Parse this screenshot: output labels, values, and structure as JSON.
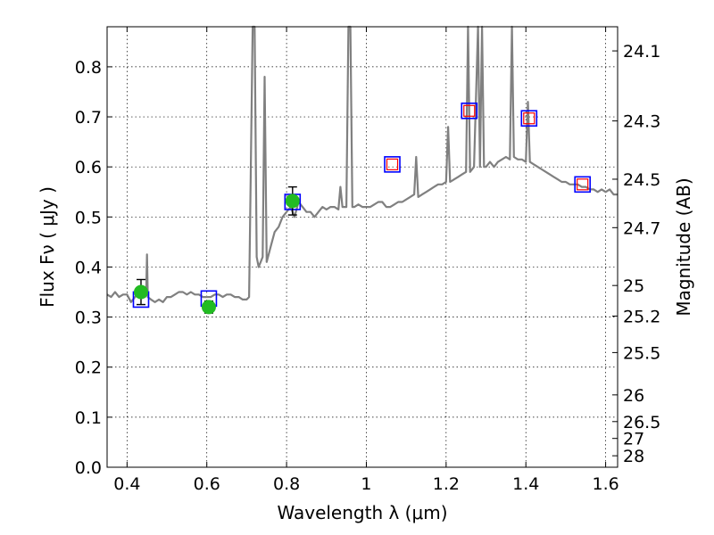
{
  "chart_data": {
    "type": "scatter",
    "xlabel": "Wavelength  λ (μm)",
    "ylabel": "Flux  Fν  ( μJy )",
    "y2label": "Magnitude (AB)",
    "xlim": [
      0.35,
      1.63
    ],
    "ylim": [
      0.0,
      0.88
    ],
    "grid": true,
    "colors": {
      "spectrum": "#808080",
      "observed_fill": "#22bb22",
      "model_square": "#0000ff",
      "model_inner": "#ff0000",
      "error_bar": "#000000"
    },
    "x_ticks": [
      {
        "value": 0.4,
        "label": "0.4"
      },
      {
        "value": 0.6,
        "label": "0.6"
      },
      {
        "value": 0.8,
        "label": "0.8"
      },
      {
        "value": 1.0,
        "label": "1"
      },
      {
        "value": 1.2,
        "label": "1.2"
      },
      {
        "value": 1.4,
        "label": "1.4"
      },
      {
        "value": 1.6,
        "label": "1.6"
      }
    ],
    "y_ticks": [
      {
        "value": 0.0,
        "label": "0.0"
      },
      {
        "value": 0.1,
        "label": "0.1"
      },
      {
        "value": 0.2,
        "label": "0.2"
      },
      {
        "value": 0.3,
        "label": "0.3"
      },
      {
        "value": 0.4,
        "label": "0.4"
      },
      {
        "value": 0.5,
        "label": "0.5"
      },
      {
        "value": 0.6,
        "label": "0.6"
      },
      {
        "value": 0.7,
        "label": "0.7"
      },
      {
        "value": 0.8,
        "label": "0.8"
      }
    ],
    "mag_ticks": [
      {
        "value": 24.1,
        "label": "24.1"
      },
      {
        "value": 24.3,
        "label": "24.3"
      },
      {
        "value": 24.5,
        "label": "24.5"
      },
      {
        "value": 24.7,
        "label": "24.7"
      },
      {
        "value": 25.0,
        "label": "25"
      },
      {
        "value": 25.2,
        "label": "25.2"
      },
      {
        "value": 25.5,
        "label": "25.5"
      },
      {
        "value": 26.0,
        "label": "26"
      },
      {
        "value": 26.5,
        "label": "26.5"
      },
      {
        "value": 27.0,
        "label": "27"
      },
      {
        "value": 28.0,
        "label": "28"
      }
    ],
    "spectrum": [
      [
        0.35,
        0.345
      ],
      [
        0.36,
        0.34
      ],
      [
        0.37,
        0.35
      ],
      [
        0.38,
        0.34
      ],
      [
        0.39,
        0.345
      ],
      [
        0.4,
        0.345
      ],
      [
        0.41,
        0.33
      ],
      [
        0.42,
        0.34
      ],
      [
        0.43,
        0.35
      ],
      [
        0.435,
        0.35
      ],
      [
        0.44,
        0.355
      ],
      [
        0.445,
        0.34
      ],
      [
        0.448,
        0.35
      ],
      [
        0.45,
        0.425
      ],
      [
        0.452,
        0.34
      ],
      [
        0.46,
        0.335
      ],
      [
        0.47,
        0.33
      ],
      [
        0.48,
        0.335
      ],
      [
        0.49,
        0.33
      ],
      [
        0.5,
        0.34
      ],
      [
        0.51,
        0.34
      ],
      [
        0.52,
        0.345
      ],
      [
        0.53,
        0.35
      ],
      [
        0.54,
        0.35
      ],
      [
        0.55,
        0.345
      ],
      [
        0.56,
        0.35
      ],
      [
        0.57,
        0.345
      ],
      [
        0.58,
        0.345
      ],
      [
        0.59,
        0.34
      ],
      [
        0.6,
        0.34
      ],
      [
        0.61,
        0.34
      ],
      [
        0.62,
        0.345
      ],
      [
        0.63,
        0.345
      ],
      [
        0.64,
        0.34
      ],
      [
        0.65,
        0.345
      ],
      [
        0.66,
        0.345
      ],
      [
        0.67,
        0.34
      ],
      [
        0.68,
        0.34
      ],
      [
        0.69,
        0.335
      ],
      [
        0.7,
        0.335
      ],
      [
        0.706,
        0.34
      ],
      [
        0.71,
        0.58
      ],
      [
        0.715,
        0.88
      ],
      [
        0.72,
        0.88
      ],
      [
        0.725,
        0.42
      ],
      [
        0.73,
        0.4
      ],
      [
        0.74,
        0.42
      ],
      [
        0.745,
        0.78
      ],
      [
        0.75,
        0.41
      ],
      [
        0.76,
        0.44
      ],
      [
        0.77,
        0.47
      ],
      [
        0.78,
        0.48
      ],
      [
        0.79,
        0.5
      ],
      [
        0.8,
        0.51
      ],
      [
        0.81,
        0.52
      ],
      [
        0.815,
        0.51
      ],
      [
        0.82,
        0.5
      ],
      [
        0.83,
        0.53
      ],
      [
        0.84,
        0.52
      ],
      [
        0.85,
        0.51
      ],
      [
        0.86,
        0.51
      ],
      [
        0.87,
        0.5
      ],
      [
        0.88,
        0.51
      ],
      [
        0.89,
        0.52
      ],
      [
        0.9,
        0.515
      ],
      [
        0.91,
        0.52
      ],
      [
        0.92,
        0.52
      ],
      [
        0.93,
        0.515
      ],
      [
        0.935,
        0.56
      ],
      [
        0.94,
        0.52
      ],
      [
        0.95,
        0.52
      ],
      [
        0.955,
        0.88
      ],
      [
        0.96,
        0.88
      ],
      [
        0.965,
        0.52
      ],
      [
        0.97,
        0.52
      ],
      [
        0.98,
        0.525
      ],
      [
        0.99,
        0.52
      ],
      [
        1.0,
        0.52
      ],
      [
        1.01,
        0.52
      ],
      [
        1.02,
        0.525
      ],
      [
        1.03,
        0.53
      ],
      [
        1.04,
        0.53
      ],
      [
        1.05,
        0.52
      ],
      [
        1.06,
        0.52
      ],
      [
        1.07,
        0.525
      ],
      [
        1.08,
        0.53
      ],
      [
        1.09,
        0.53
      ],
      [
        1.1,
        0.535
      ],
      [
        1.11,
        0.54
      ],
      [
        1.12,
        0.545
      ],
      [
        1.125,
        0.62
      ],
      [
        1.13,
        0.54
      ],
      [
        1.14,
        0.545
      ],
      [
        1.15,
        0.55
      ],
      [
        1.16,
        0.555
      ],
      [
        1.17,
        0.56
      ],
      [
        1.18,
        0.565
      ],
      [
        1.19,
        0.565
      ],
      [
        1.2,
        0.57
      ],
      [
        1.205,
        0.68
      ],
      [
        1.21,
        0.57
      ],
      [
        1.22,
        0.575
      ],
      [
        1.23,
        0.58
      ],
      [
        1.24,
        0.585
      ],
      [
        1.25,
        0.59
      ],
      [
        1.255,
        0.88
      ],
      [
        1.26,
        0.59
      ],
      [
        1.27,
        0.6
      ],
      [
        1.28,
        0.88
      ],
      [
        1.285,
        0.6
      ],
      [
        1.29,
        0.88
      ],
      [
        1.295,
        0.6
      ],
      [
        1.3,
        0.6
      ],
      [
        1.31,
        0.61
      ],
      [
        1.32,
        0.6
      ],
      [
        1.33,
        0.61
      ],
      [
        1.34,
        0.615
      ],
      [
        1.35,
        0.62
      ],
      [
        1.36,
        0.615
      ],
      [
        1.365,
        0.88
      ],
      [
        1.37,
        0.62
      ],
      [
        1.38,
        0.615
      ],
      [
        1.39,
        0.615
      ],
      [
        1.4,
        0.61
      ],
      [
        1.405,
        0.73
      ],
      [
        1.41,
        0.61
      ],
      [
        1.42,
        0.605
      ],
      [
        1.43,
        0.6
      ],
      [
        1.44,
        0.595
      ],
      [
        1.45,
        0.59
      ],
      [
        1.46,
        0.585
      ],
      [
        1.47,
        0.58
      ],
      [
        1.48,
        0.575
      ],
      [
        1.49,
        0.57
      ],
      [
        1.5,
        0.57
      ],
      [
        1.51,
        0.565
      ],
      [
        1.52,
        0.565
      ],
      [
        1.53,
        0.565
      ],
      [
        1.54,
        0.56
      ],
      [
        1.55,
        0.56
      ],
      [
        1.56,
        0.555
      ],
      [
        1.57,
        0.555
      ],
      [
        1.58,
        0.55
      ],
      [
        1.59,
        0.555
      ],
      [
        1.6,
        0.55
      ],
      [
        1.61,
        0.555
      ],
      [
        1.62,
        0.545
      ],
      [
        1.63,
        0.545
      ]
    ],
    "observed": [
      {
        "x": 0.435,
        "y": 0.35,
        "err": 0.025
      },
      {
        "x": 0.605,
        "y": 0.32,
        "err": 0.012
      },
      {
        "x": 0.815,
        "y": 0.532,
        "err": 0.028
      }
    ],
    "model": [
      {
        "x": 0.435,
        "y": 0.335,
        "inner": false
      },
      {
        "x": 0.605,
        "y": 0.337,
        "inner": false
      },
      {
        "x": 0.815,
        "y": 0.53,
        "inner": false
      },
      {
        "x": 1.065,
        "y": 0.605,
        "inner": true
      },
      {
        "x": 1.258,
        "y": 0.712,
        "inner": true
      },
      {
        "x": 1.408,
        "y": 0.697,
        "inner": true
      },
      {
        "x": 1.542,
        "y": 0.565,
        "inner": true
      }
    ]
  }
}
